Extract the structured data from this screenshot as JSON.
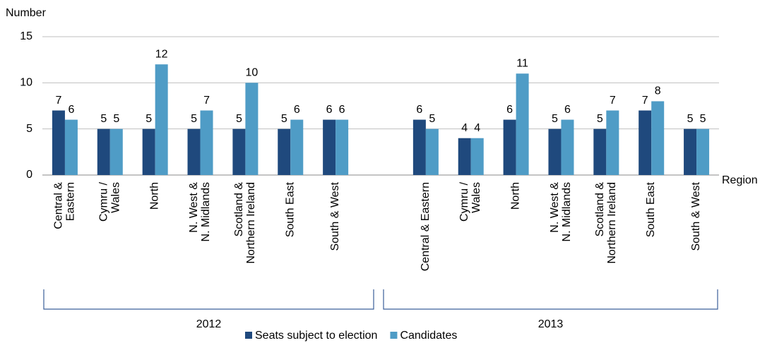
{
  "chart_data": {
    "type": "bar",
    "y_axis_label": "Number",
    "x_axis_label": "Region",
    "categories": [
      "Central &\nEastern",
      "Cymru /\nWales",
      "North",
      "N. West &\nN. Midlands",
      "Scotland &\nNorthern Ireland",
      "South East",
      "South & West",
      null,
      "Central & Eastern",
      "Cymru /\nWales",
      "North",
      "N. West &\nN. Midlands",
      "Scotland &\nNorthern Ireland",
      "South East",
      "South & West"
    ],
    "groups": [
      "2012",
      "2013"
    ],
    "series": [
      {
        "name": "Seats subject to election",
        "color": "#1f497d",
        "values": [
          7,
          5,
          5,
          5,
          5,
          5,
          6,
          null,
          6,
          4,
          6,
          5,
          5,
          7,
          5
        ]
      },
      {
        "name": "Candidates",
        "color": "#4f9cc6",
        "values": [
          6,
          5,
          12,
          7,
          10,
          6,
          6,
          null,
          5,
          4,
          11,
          6,
          7,
          8,
          5
        ]
      }
    ],
    "ylim": [
      0,
      15
    ],
    "yticks": [
      0,
      5,
      10,
      15
    ],
    "grid": true
  }
}
